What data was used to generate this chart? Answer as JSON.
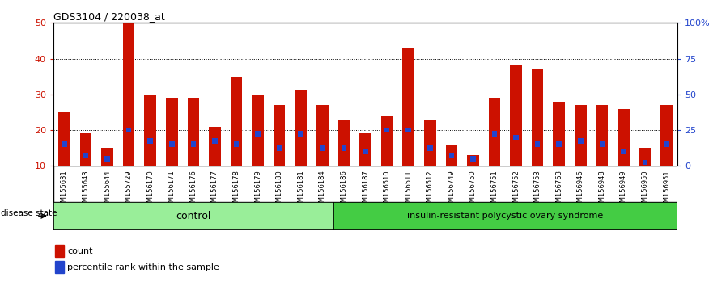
{
  "title": "GDS3104 / 220038_at",
  "samples": [
    "GSM155631",
    "GSM155643",
    "GSM155644",
    "GSM155729",
    "GSM156170",
    "GSM156171",
    "GSM156176",
    "GSM156177",
    "GSM156178",
    "GSM156179",
    "GSM156180",
    "GSM156181",
    "GSM156184",
    "GSM156186",
    "GSM156187",
    "GSM156510",
    "GSM156511",
    "GSM156512",
    "GSM156749",
    "GSM156750",
    "GSM156751",
    "GSM156752",
    "GSM156753",
    "GSM156763",
    "GSM156946",
    "GSM156948",
    "GSM156949",
    "GSM156950",
    "GSM156951"
  ],
  "counts": [
    25,
    19,
    15,
    50,
    30,
    29,
    29,
    21,
    35,
    30,
    27,
    31,
    27,
    23,
    19,
    24,
    43,
    23,
    16,
    13,
    29,
    38,
    37,
    28,
    27,
    27,
    26,
    15,
    27
  ],
  "percentiles": [
    16,
    13,
    12,
    20,
    17,
    16,
    16,
    17,
    16,
    19,
    15,
    19,
    15,
    15,
    14,
    20,
    20,
    15,
    13,
    12,
    19,
    18,
    16,
    16,
    17,
    16,
    14,
    11,
    16
  ],
  "control_count": 13,
  "disease_count": 16,
  "group1_label": "control",
  "group2_label": "insulin-resistant polycystic ovary syndrome",
  "disease_state_label": "disease state",
  "legend_count": "count",
  "legend_percentile": "percentile rank within the sample",
  "bar_color": "#cc1100",
  "percentile_color": "#2244cc",
  "plot_bg": "#ffffff",
  "xtick_bg": "#cccccc",
  "control_bg": "#99ee99",
  "disease_bg": "#44cc44",
  "ylim_left": [
    10,
    50
  ],
  "ylim_right": [
    0,
    100
  ],
  "yticks_left": [
    10,
    20,
    30,
    40,
    50
  ],
  "yticks_right": [
    0,
    25,
    50,
    75,
    100
  ],
  "grid_ticks": [
    20,
    30,
    40
  ],
  "bar_width": 0.55,
  "blue_bar_width": 0.25
}
